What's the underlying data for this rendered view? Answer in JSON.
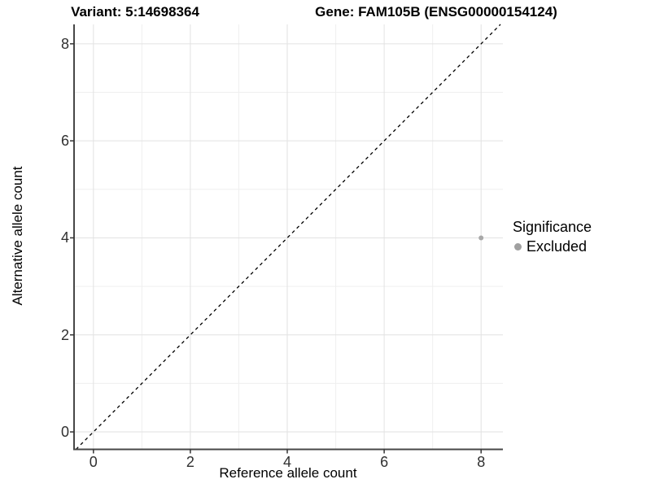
{
  "chart_data": {
    "type": "scatter",
    "titles": {
      "left": "Variant: 5:14698364",
      "right": "Gene: FAM105B (ENSG00000154124)"
    },
    "xlabel": "Reference allele count",
    "ylabel": "Alternative allele count",
    "xlim": [
      -0.4,
      8.45
    ],
    "ylim": [
      -0.36,
      8.4
    ],
    "x_ticks": [
      0,
      2,
      4,
      6,
      8
    ],
    "y_ticks": [
      0,
      2,
      4,
      6,
      8
    ],
    "x_minor_ticks": [
      1,
      3,
      5,
      7
    ],
    "y_minor_ticks": [
      1,
      3,
      5,
      7
    ],
    "grid": "major+minor",
    "reference_line": {
      "type": "identity y=x",
      "style": "dashed",
      "color": "#000000"
    },
    "points": [
      {
        "x": 8,
        "y": 4,
        "significance": "Excluded"
      }
    ],
    "legend": {
      "title": "Significance",
      "position": "right",
      "items": [
        {
          "label": "Excluded",
          "color": "#a0a0a0"
        }
      ]
    },
    "colors": {
      "point": "#a8a8a8",
      "grid_major": "#e2e2e2",
      "grid_minor": "#efefef",
      "axis_line": "#474747",
      "tick_mark": "#333333",
      "tick_label": "#303030"
    }
  }
}
